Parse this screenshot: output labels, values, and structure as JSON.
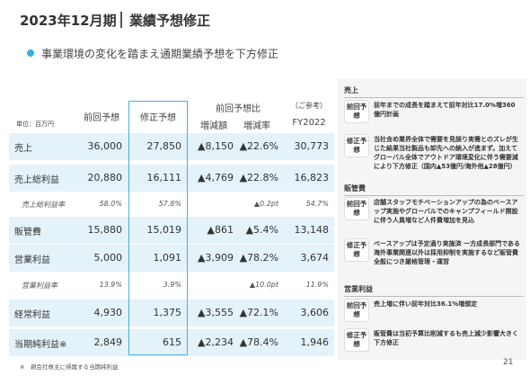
{
  "title": {
    "period": "2023年12月期",
    "main": "業績予想修正"
  },
  "subtitle": "事業環境の変化を踏まえ通期業績予想を下方修正",
  "table": {
    "unit": "単位：百万円",
    "headers": {
      "prev": "前回予想",
      "revised": "修正予想",
      "group": "前回予想比",
      "diff": "増減額",
      "rate": "増減率",
      "ref": "（ご参考）",
      "fy2022": "FY2022"
    },
    "rows": [
      {
        "label": "売上",
        "prev": "36,000",
        "revised": "27,850",
        "diff": "▲8,150",
        "rate": "▲22.6%",
        "fy2022": "30,773"
      },
      {
        "label": "売上総利益",
        "prev": "20,880",
        "revised": "16,111",
        "diff": "▲4,769",
        "rate": "▲22.8%",
        "fy2022": "16,823"
      },
      {
        "label": "売上総利益率",
        "prev": "58.0%",
        "revised": "57.8%",
        "rate": "▲0.2pt",
        "fy2022": "54.7%"
      },
      {
        "label": "販管費",
        "prev": "15,880",
        "revised": "15,019",
        "diff": "▲861",
        "rate": "▲5.4%",
        "fy2022": "13,148"
      },
      {
        "label": "営業利益",
        "prev": "5,000",
        "revised": "1,091",
        "diff": "▲3,909",
        "rate": "▲78.2%",
        "fy2022": "3,674"
      },
      {
        "label": "営業利益率",
        "prev": "13.9%",
        "revised": "3.9%",
        "rate": "▲10.0pt",
        "fy2022": "11.9%"
      },
      {
        "label": "経常利益",
        "prev": "4,930",
        "revised": "1,375",
        "diff": "▲3,555",
        "rate": "▲72.1%",
        "fy2022": "3,606"
      },
      {
        "label": "当期純利益※",
        "prev": "2,849",
        "revised": "615",
        "diff": "▲2,234",
        "rate": "▲78.4%",
        "fy2022": "1,946"
      }
    ]
  },
  "notes": [
    {
      "heading": "売上",
      "items": [
        {
          "tag": "前回予想",
          "text": "前年までの成長を踏まえて前年対比17.0%増360億円計画"
        },
        {
          "tag": "修正予想",
          "text": "当社含め業界全体で需要を見誤り実需とのズレが生じた結果当社製品も卸先への納入が進まず。加えてグローバル全体でアウトドア環境変化に伴う需要減により下方修正（国内▲53億円/海外他▲28億円）"
        }
      ]
    },
    {
      "heading": "販管費",
      "items": [
        {
          "tag": "前回予想",
          "text": "店舗スタッフモチベーションアップの為のベースアップ実施やグローバルでのキャンプフィールド開設に伴う人員増など人件費増加を見込"
        },
        {
          "tag": "修正予想",
          "text": "ベースアップは予定通り実施済 一方成長部門である海外事業関連以外は採用抑制を実施するなど販管費全般につき厳格管理・運営"
        }
      ]
    },
    {
      "heading": "営業利益",
      "items": [
        {
          "tag": "前回予想",
          "text": "売上増に伴い前年対比36.1%増想定"
        },
        {
          "tag": "修正予想",
          "text": "販管費は当初予算比削減するも売上減少影響大きく下方修正"
        }
      ]
    }
  ],
  "footnote": "※　親会社株主に帰属する当期純利益",
  "page_number": "21"
}
